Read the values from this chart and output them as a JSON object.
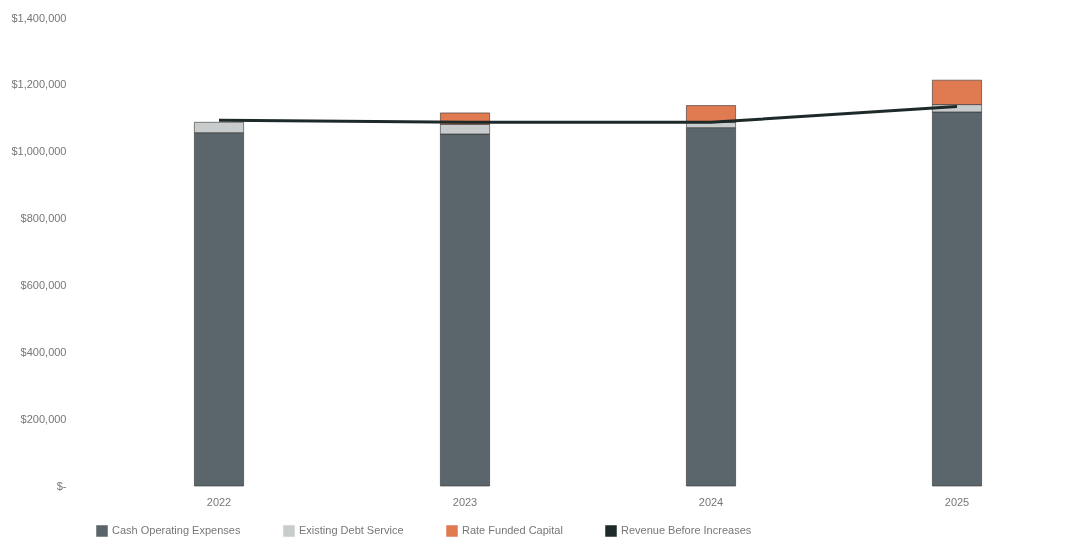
{
  "chart_data": {
    "type": "bar",
    "stacked": true,
    "categories": [
      "2022",
      "2023",
      "2024",
      "2025"
    ],
    "series": [
      {
        "name": "Cash Operating Expenses",
        "color": "#5a666b",
        "values": [
          1057000,
          1053000,
          1072000,
          1119000
        ]
      },
      {
        "name": "Existing Debt Service",
        "color": "#c8cccc",
        "values": [
          31000,
          29000,
          16000,
          22000
        ]
      },
      {
        "name": "Rate Funded Capital",
        "color": "#e07a50",
        "values": [
          null,
          34000,
          50000,
          73000
        ]
      },
      {
        "name": "Revenue Before Increases",
        "color": "#1e2a2a",
        "type": "line",
        "values": [
          1094000,
          1088000,
          1088000,
          1135000
        ]
      }
    ],
    "ylim": [
      0,
      1400000
    ],
    "yticks": [
      {
        "value": 0,
        "label": "$-"
      },
      {
        "value": 200000,
        "label": "$200,000"
      },
      {
        "value": 400000,
        "label": "$400,000"
      },
      {
        "value": 600000,
        "label": "$600,000"
      },
      {
        "value": 800000,
        "label": "$800,000"
      },
      {
        "value": 1000000,
        "label": "$1,000,000"
      },
      {
        "value": 1200000,
        "label": "$1,200,000"
      },
      {
        "value": 1400000,
        "label": "$1,400,000"
      }
    ],
    "grid": false,
    "legend": "bottom",
    "marker": "none",
    "line_style": "solid"
  }
}
